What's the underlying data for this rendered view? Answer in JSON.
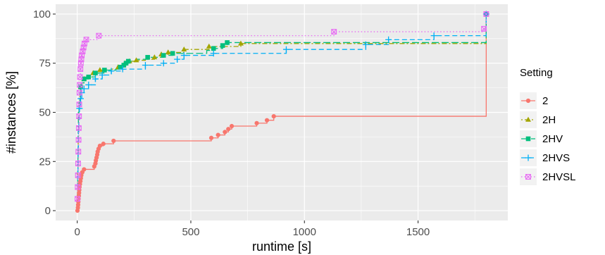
{
  "chart_data": {
    "type": "line",
    "step": true,
    "title": "",
    "xlabel": "runtime [s]",
    "ylabel": "#instances [%]",
    "xlim": [
      -95,
      1895
    ],
    "ylim": [
      -5,
      105
    ],
    "xticks": [
      0,
      500,
      1000,
      1500
    ],
    "yticks": [
      0,
      25,
      50,
      75,
      100
    ],
    "grid": true,
    "legend": {
      "title": "Setting",
      "position": "right"
    },
    "series": [
      {
        "name": "2",
        "color": "#F8766D",
        "marker": "circle",
        "linetype": "solid",
        "points": [
          [
            1,
            0
          ],
          [
            3,
            1.5
          ],
          [
            4,
            3
          ],
          [
            5,
            4.5
          ],
          [
            6,
            6
          ],
          [
            7,
            7.5
          ],
          [
            8,
            9
          ],
          [
            9,
            10.5
          ],
          [
            10,
            12
          ],
          [
            12,
            13.5
          ],
          [
            14,
            15
          ],
          [
            16,
            16.5
          ],
          [
            18,
            18
          ],
          [
            22,
            19.5
          ],
          [
            30,
            21
          ],
          [
            75,
            22.5
          ],
          [
            80,
            24
          ],
          [
            82,
            25.5
          ],
          [
            85,
            27
          ],
          [
            88,
            28.5
          ],
          [
            90,
            30
          ],
          [
            94,
            31.5
          ],
          [
            100,
            33
          ],
          [
            115,
            34
          ],
          [
            160,
            35.5
          ],
          [
            590,
            37
          ],
          [
            620,
            38.5
          ],
          [
            650,
            40
          ],
          [
            665,
            41.5
          ],
          [
            680,
            43
          ],
          [
            790,
            44.5
          ],
          [
            835,
            46
          ],
          [
            865,
            48
          ],
          [
            1800,
            48
          ],
          [
            1800,
            100
          ]
        ],
        "markers": [
          [
            1,
            0
          ],
          [
            3,
            1.5
          ],
          [
            4,
            3
          ],
          [
            5,
            4.5
          ],
          [
            6,
            6
          ],
          [
            7,
            7.5
          ],
          [
            8,
            9
          ],
          [
            9,
            10.5
          ],
          [
            10,
            12
          ],
          [
            12,
            13.5
          ],
          [
            14,
            15
          ],
          [
            16,
            16.5
          ],
          [
            18,
            18
          ],
          [
            22,
            19.5
          ],
          [
            30,
            21
          ],
          [
            75,
            22.5
          ],
          [
            80,
            24
          ],
          [
            82,
            25.5
          ],
          [
            85,
            27
          ],
          [
            88,
            28.5
          ],
          [
            90,
            30
          ],
          [
            94,
            31.5
          ],
          [
            100,
            33
          ],
          [
            115,
            34
          ],
          [
            160,
            35.5
          ],
          [
            590,
            37
          ],
          [
            620,
            38.5
          ],
          [
            650,
            40
          ],
          [
            665,
            41.5
          ],
          [
            680,
            43
          ],
          [
            790,
            44.5
          ],
          [
            835,
            46
          ],
          [
            865,
            48
          ],
          [
            1800,
            100
          ]
        ]
      },
      {
        "name": "2H",
        "color": "#A3A500",
        "marker": "triangle",
        "linetype": "dotdash",
        "points": [
          [
            0,
            0
          ],
          [
            1,
            10
          ],
          [
            2,
            20
          ],
          [
            3,
            30
          ],
          [
            4,
            40
          ],
          [
            5,
            50
          ],
          [
            8,
            55
          ],
          [
            12,
            60
          ],
          [
            15,
            63
          ],
          [
            20,
            65
          ],
          [
            30,
            67
          ],
          [
            40,
            68
          ],
          [
            70,
            70
          ],
          [
            100,
            71.5
          ],
          [
            150,
            72
          ],
          [
            180,
            73
          ],
          [
            200,
            74
          ],
          [
            210,
            75
          ],
          [
            230,
            76
          ],
          [
            260,
            76.5
          ],
          [
            300,
            77
          ],
          [
            340,
            78
          ],
          [
            370,
            79.5
          ],
          [
            400,
            80.5
          ],
          [
            470,
            82
          ],
          [
            580,
            83.5
          ],
          [
            720,
            85
          ],
          [
            1800,
            85
          ],
          [
            1800,
            100
          ]
        ],
        "markers": [
          [
            15,
            63
          ],
          [
            30,
            67
          ],
          [
            70,
            70
          ],
          [
            100,
            71.5
          ],
          [
            180,
            73
          ],
          [
            210,
            75
          ],
          [
            230,
            76
          ],
          [
            260,
            76.5
          ],
          [
            340,
            78
          ],
          [
            370,
            79.5
          ],
          [
            400,
            80.5
          ],
          [
            470,
            82
          ],
          [
            580,
            83.5
          ],
          [
            720,
            85
          ],
          [
            1800,
            100
          ]
        ]
      },
      {
        "name": "2HV",
        "color": "#00BF7D",
        "marker": "square",
        "linetype": "longdash",
        "points": [
          [
            0,
            0
          ],
          [
            1,
            10
          ],
          [
            2,
            20
          ],
          [
            3,
            30
          ],
          [
            4,
            40
          ],
          [
            5,
            50
          ],
          [
            8,
            55
          ],
          [
            12,
            60
          ],
          [
            15,
            63
          ],
          [
            20,
            65
          ],
          [
            30,
            67
          ],
          [
            50,
            68
          ],
          [
            80,
            70
          ],
          [
            120,
            71.5
          ],
          [
            170,
            72
          ],
          [
            190,
            73
          ],
          [
            205,
            74
          ],
          [
            215,
            75
          ],
          [
            225,
            76
          ],
          [
            260,
            77
          ],
          [
            310,
            78
          ],
          [
            380,
            79
          ],
          [
            420,
            80
          ],
          [
            570,
            81.5
          ],
          [
            600,
            82.5
          ],
          [
            640,
            84
          ],
          [
            660,
            85.5
          ],
          [
            1800,
            85.5
          ],
          [
            1800,
            100
          ]
        ],
        "markers": [
          [
            15,
            63
          ],
          [
            30,
            67
          ],
          [
            50,
            68
          ],
          [
            80,
            70
          ],
          [
            120,
            71.5
          ],
          [
            190,
            73
          ],
          [
            205,
            74
          ],
          [
            215,
            75
          ],
          [
            225,
            76
          ],
          [
            310,
            78
          ],
          [
            380,
            79
          ],
          [
            420,
            80
          ],
          [
            600,
            82.5
          ],
          [
            640,
            84
          ],
          [
            660,
            85.5
          ],
          [
            1800,
            100
          ]
        ]
      },
      {
        "name": "2HVS",
        "color": "#00B0F6",
        "marker": "plus",
        "linetype": "dashed",
        "points": [
          [
            0,
            0
          ],
          [
            1,
            8
          ],
          [
            2,
            16
          ],
          [
            3,
            24
          ],
          [
            4,
            32
          ],
          [
            5,
            40
          ],
          [
            7,
            46
          ],
          [
            10,
            52
          ],
          [
            15,
            57
          ],
          [
            20,
            60
          ],
          [
            30,
            62
          ],
          [
            50,
            64
          ],
          [
            80,
            67
          ],
          [
            110,
            69
          ],
          [
            150,
            71
          ],
          [
            200,
            72
          ],
          [
            300,
            74
          ],
          [
            380,
            75
          ],
          [
            440,
            77
          ],
          [
            470,
            79
          ],
          [
            600,
            80
          ],
          [
            920,
            82
          ],
          [
            1270,
            84.5
          ],
          [
            1370,
            87
          ],
          [
            1570,
            89
          ],
          [
            1800,
            89
          ],
          [
            1800,
            100
          ]
        ],
        "markers": [
          [
            10,
            52
          ],
          [
            15,
            57
          ],
          [
            20,
            60
          ],
          [
            30,
            62
          ],
          [
            50,
            64
          ],
          [
            80,
            67
          ],
          [
            110,
            69
          ],
          [
            150,
            71
          ],
          [
            200,
            72
          ],
          [
            300,
            74
          ],
          [
            380,
            75
          ],
          [
            440,
            77
          ],
          [
            470,
            79
          ],
          [
            600,
            80
          ],
          [
            920,
            82
          ],
          [
            1270,
            84.5
          ],
          [
            1370,
            87
          ],
          [
            1570,
            89
          ],
          [
            1800,
            100
          ]
        ]
      },
      {
        "name": "2HVSL",
        "color": "#E76BF3",
        "marker": "boxx",
        "linetype": "dotted",
        "points": [
          [
            0,
            0
          ],
          [
            1,
            6
          ],
          [
            2,
            12
          ],
          [
            3,
            18
          ],
          [
            4,
            24
          ],
          [
            5,
            30
          ],
          [
            6,
            36
          ],
          [
            7,
            42
          ],
          [
            8,
            48
          ],
          [
            9,
            54
          ],
          [
            10,
            60
          ],
          [
            11,
            64
          ],
          [
            12,
            68
          ],
          [
            14,
            72
          ],
          [
            16,
            75
          ],
          [
            18,
            77
          ],
          [
            20,
            79
          ],
          [
            24,
            81
          ],
          [
            28,
            83
          ],
          [
            32,
            85
          ],
          [
            40,
            87
          ],
          [
            95,
            89
          ],
          [
            1130,
            91
          ],
          [
            1790,
            92.5
          ],
          [
            1800,
            100
          ]
        ],
        "markers": [
          [
            1,
            6
          ],
          [
            2,
            12
          ],
          [
            3,
            18
          ],
          [
            4,
            24
          ],
          [
            5,
            30
          ],
          [
            6,
            36
          ],
          [
            7,
            42
          ],
          [
            8,
            48
          ],
          [
            9,
            54
          ],
          [
            10,
            60
          ],
          [
            11,
            64
          ],
          [
            12,
            68
          ],
          [
            14,
            72
          ],
          [
            16,
            75
          ],
          [
            18,
            77
          ],
          [
            20,
            79
          ],
          [
            24,
            81
          ],
          [
            28,
            83
          ],
          [
            32,
            85
          ],
          [
            40,
            87
          ],
          [
            95,
            89
          ],
          [
            1130,
            91
          ],
          [
            1790,
            92.5
          ],
          [
            1800,
            100
          ]
        ]
      }
    ]
  }
}
